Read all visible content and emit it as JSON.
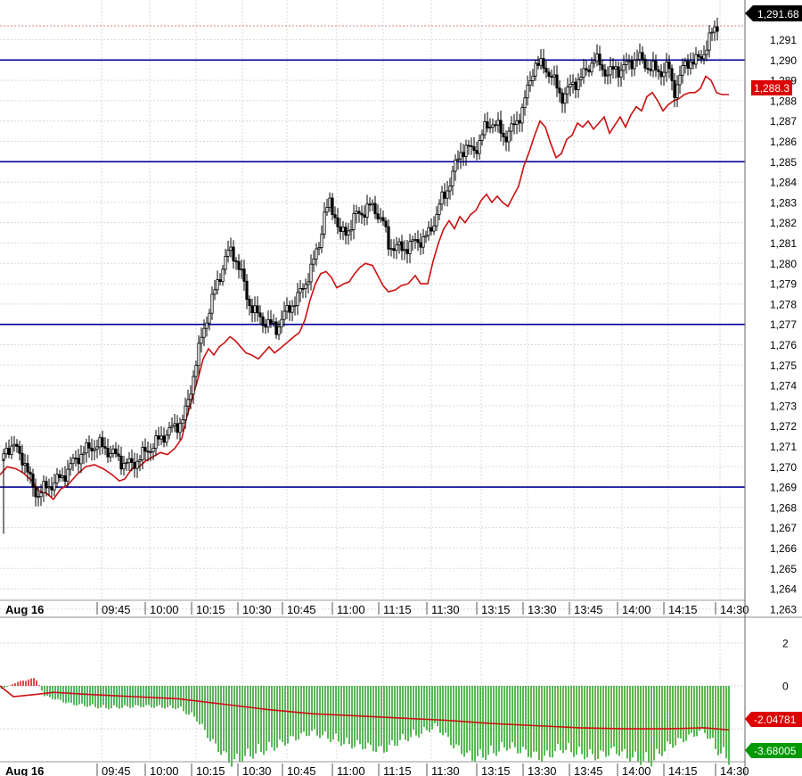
{
  "chart_data": [
    {
      "type": "candlestick",
      "panel": "price",
      "ylim": [
        1262.6,
        1292.6
      ],
      "y_ticks": [
        1263,
        1264,
        1265,
        1266,
        1267,
        1268,
        1269,
        1270,
        1271,
        1272,
        1273,
        1274,
        1275,
        1276,
        1277,
        1278,
        1279,
        1280,
        1281,
        1282,
        1283,
        1284,
        1285,
        1286,
        1287,
        1288,
        1289,
        1290,
        1291
      ],
      "x_ticks": [
        "09:45",
        "10:00",
        "10:15",
        "10:30",
        "10:45",
        "11:00",
        "11:15",
        "11:30",
        "13:15",
        "13:30",
        "13:45",
        "14:00",
        "14:15",
        "14:30"
      ],
      "date_label": "Aug 16",
      "grid": true,
      "horizontal_levels": [
        1290,
        1285,
        1277,
        1269
      ],
      "last_price_label": "1,291.68",
      "secondary_label": "1,288.3",
      "close_path": [
        [
          0,
          1270.3
        ],
        [
          8,
          1271.0
        ],
        [
          18,
          1270.9
        ],
        [
          26,
          1270.4
        ],
        [
          34,
          1269.3
        ],
        [
          42,
          1268.6
        ],
        [
          52,
          1269.0
        ],
        [
          60,
          1269.2
        ],
        [
          70,
          1269.5
        ],
        [
          80,
          1270.1
        ],
        [
          90,
          1270.6
        ],
        [
          100,
          1270.9
        ],
        [
          110,
          1271.1
        ],
        [
          118,
          1270.9
        ],
        [
          128,
          1270.6
        ],
        [
          138,
          1270.2
        ],
        [
          148,
          1270.1
        ],
        [
          158,
          1270.5
        ],
        [
          168,
          1270.9
        ],
        [
          178,
          1271.3
        ],
        [
          188,
          1271.7
        ],
        [
          198,
          1272.0
        ],
        [
          206,
          1272.4
        ],
        [
          212,
          1273.3
        ],
        [
          218,
          1274.8
        ],
        [
          224,
          1275.9
        ],
        [
          230,
          1277.0
        ],
        [
          238,
          1278.2
        ],
        [
          246,
          1279.3
        ],
        [
          254,
          1280.4
        ],
        [
          260,
          1280.6
        ],
        [
          266,
          1280.1
        ],
        [
          272,
          1279.3
        ],
        [
          278,
          1278.2
        ],
        [
          286,
          1277.6
        ],
        [
          294,
          1277.2
        ],
        [
          302,
          1277.0
        ],
        [
          310,
          1276.8
        ],
        [
          318,
          1277.4
        ],
        [
          326,
          1277.9
        ],
        [
          334,
          1278.3
        ],
        [
          342,
          1279.0
        ],
        [
          350,
          1279.8
        ],
        [
          358,
          1281.0
        ],
        [
          364,
          1282.4
        ],
        [
          370,
          1282.9
        ],
        [
          376,
          1282.4
        ],
        [
          382,
          1281.4
        ],
        [
          390,
          1281.6
        ],
        [
          398,
          1282.3
        ],
        [
          406,
          1282.5
        ],
        [
          414,
          1282.8
        ],
        [
          422,
          1282.6
        ],
        [
          430,
          1282.0
        ],
        [
          436,
          1280.9
        ],
        [
          444,
          1280.8
        ],
        [
          452,
          1280.7
        ],
        [
          460,
          1280.9
        ],
        [
          468,
          1281.1
        ],
        [
          476,
          1281.2
        ],
        [
          482,
          1281.5
        ],
        [
          488,
          1282.2
        ],
        [
          494,
          1283.0
        ],
        [
          500,
          1283.4
        ],
        [
          506,
          1284.2
        ],
        [
          512,
          1284.9
        ],
        [
          518,
          1285.6
        ],
        [
          524,
          1285.7
        ],
        [
          530,
          1285.5
        ],
        [
          536,
          1285.8
        ],
        [
          544,
          1286.6
        ],
        [
          552,
          1287.0
        ],
        [
          560,
          1286.6
        ],
        [
          566,
          1286.2
        ],
        [
          572,
          1286.5
        ],
        [
          578,
          1286.8
        ],
        [
          586,
          1287.6
        ],
        [
          594,
          1288.8
        ],
        [
          600,
          1289.9
        ],
        [
          606,
          1289.7
        ],
        [
          612,
          1289.6
        ],
        [
          618,
          1289.3
        ],
        [
          624,
          1288.7
        ],
        [
          630,
          1288.2
        ],
        [
          636,
          1288.4
        ],
        [
          642,
          1288.8
        ],
        [
          648,
          1289.0
        ],
        [
          654,
          1289.2
        ],
        [
          660,
          1289.6
        ],
        [
          666,
          1290.1
        ],
        [
          672,
          1289.8
        ],
        [
          678,
          1289.5
        ],
        [
          684,
          1289.3
        ],
        [
          690,
          1289.6
        ],
        [
          696,
          1289.5
        ],
        [
          702,
          1289.7
        ],
        [
          708,
          1289.9
        ],
        [
          714,
          1290.1
        ],
        [
          720,
          1290.0
        ],
        [
          726,
          1289.7
        ],
        [
          732,
          1289.6
        ],
        [
          738,
          1289.4
        ],
        [
          744,
          1289.5
        ],
        [
          750,
          1289.7
        ],
        [
          756,
          1288.4
        ],
        [
          762,
          1289.1
        ],
        [
          768,
          1289.7
        ],
        [
          774,
          1290.0
        ],
        [
          780,
          1289.9
        ],
        [
          786,
          1290.1
        ],
        [
          792,
          1290.6
        ],
        [
          798,
          1291.2
        ],
        [
          804,
          1291.7
        ]
      ],
      "overlay_line_red": [
        [
          0,
          1269.6
        ],
        [
          8,
          1270.0
        ],
        [
          18,
          1269.9
        ],
        [
          26,
          1269.7
        ],
        [
          36,
          1269.3
        ],
        [
          44,
          1268.8
        ],
        [
          52,
          1268.7
        ],
        [
          60,
          1268.4
        ],
        [
          68,
          1268.9
        ],
        [
          76,
          1269.1
        ],
        [
          86,
          1269.6
        ],
        [
          96,
          1270.0
        ],
        [
          106,
          1270.1
        ],
        [
          116,
          1269.9
        ],
        [
          126,
          1269.6
        ],
        [
          134,
          1269.3
        ],
        [
          140,
          1269.4
        ],
        [
          148,
          1269.9
        ],
        [
          156,
          1270.0
        ],
        [
          164,
          1270.3
        ],
        [
          172,
          1270.5
        ],
        [
          180,
          1270.7
        ],
        [
          188,
          1270.6
        ],
        [
          196,
          1270.9
        ],
        [
          204,
          1271.4
        ],
        [
          210,
          1272.5
        ],
        [
          216,
          1273.4
        ],
        [
          222,
          1274.3
        ],
        [
          228,
          1275.3
        ],
        [
          234,
          1275.8
        ],
        [
          240,
          1275.5
        ],
        [
          246,
          1275.9
        ],
        [
          252,
          1276.1
        ],
        [
          258,
          1276.4
        ],
        [
          264,
          1276.2
        ],
        [
          270,
          1275.9
        ],
        [
          276,
          1275.6
        ],
        [
          282,
          1275.5
        ],
        [
          290,
          1275.3
        ],
        [
          296,
          1275.6
        ],
        [
          302,
          1275.9
        ],
        [
          308,
          1275.6
        ],
        [
          314,
          1275.8
        ],
        [
          322,
          1276.1
        ],
        [
          330,
          1276.4
        ],
        [
          336,
          1276.6
        ],
        [
          342,
          1277.2
        ],
        [
          348,
          1278.2
        ],
        [
          354,
          1279.0
        ],
        [
          360,
          1279.5
        ],
        [
          366,
          1279.6
        ],
        [
          372,
          1279.3
        ],
        [
          378,
          1278.8
        ],
        [
          386,
          1279.0
        ],
        [
          392,
          1279.1
        ],
        [
          398,
          1279.5
        ],
        [
          404,
          1279.8
        ],
        [
          410,
          1280.0
        ],
        [
          418,
          1279.9
        ],
        [
          424,
          1279.4
        ],
        [
          430,
          1278.9
        ],
        [
          436,
          1278.6
        ],
        [
          444,
          1278.7
        ],
        [
          450,
          1278.9
        ],
        [
          458,
          1279.0
        ],
        [
          466,
          1279.4
        ],
        [
          472,
          1279.0
        ],
        [
          480,
          1279.0
        ],
        [
          486,
          1280.1
        ],
        [
          492,
          1281.0
        ],
        [
          498,
          1281.7
        ],
        [
          504,
          1282.1
        ],
        [
          510,
          1281.7
        ],
        [
          516,
          1282.3
        ],
        [
          522,
          1282.0
        ],
        [
          528,
          1282.4
        ],
        [
          534,
          1282.6
        ],
        [
          540,
          1283.1
        ],
        [
          546,
          1283.4
        ],
        [
          552,
          1283.0
        ],
        [
          558,
          1283.3
        ],
        [
          564,
          1283.0
        ],
        [
          570,
          1282.8
        ],
        [
          576,
          1283.3
        ],
        [
          582,
          1283.8
        ],
        [
          588,
          1284.8
        ],
        [
          594,
          1285.5
        ],
        [
          600,
          1286.3
        ],
        [
          606,
          1287.0
        ],
        [
          612,
          1286.7
        ],
        [
          618,
          1285.9
        ],
        [
          624,
          1285.2
        ],
        [
          630,
          1285.4
        ],
        [
          636,
          1286.1
        ],
        [
          642,
          1286.3
        ],
        [
          648,
          1286.9
        ],
        [
          654,
          1286.7
        ],
        [
          660,
          1287.0
        ],
        [
          666,
          1286.6
        ],
        [
          672,
          1286.9
        ],
        [
          678,
          1287.2
        ],
        [
          684,
          1286.4
        ],
        [
          690,
          1286.8
        ],
        [
          696,
          1287.2
        ],
        [
          702,
          1286.7
        ],
        [
          708,
          1287.3
        ],
        [
          714,
          1287.7
        ],
        [
          720,
          1287.5
        ],
        [
          726,
          1288.2
        ],
        [
          732,
          1288.4
        ],
        [
          738,
          1288.0
        ],
        [
          744,
          1287.5
        ],
        [
          750,
          1287.8
        ],
        [
          756,
          1288.0
        ],
        [
          762,
          1288.1
        ],
        [
          768,
          1288.3
        ],
        [
          774,
          1288.4
        ],
        [
          780,
          1288.4
        ],
        [
          786,
          1288.6
        ],
        [
          792,
          1289.2
        ],
        [
          798,
          1289.0
        ],
        [
          804,
          1288.4
        ],
        [
          810,
          1288.3
        ],
        [
          818,
          1288.3
        ]
      ]
    },
    {
      "type": "bar",
      "panel": "oscillator",
      "ylim": [
        -4.2,
        3.2
      ],
      "y_ticks": [
        2,
        0
      ],
      "x_ticks": [
        "09:45",
        "10:00",
        "10:15",
        "10:30",
        "10:45",
        "11:00",
        "11:15",
        "11:30",
        "13:15",
        "13:30",
        "13:45",
        "14:00",
        "14:15",
        "14:30"
      ],
      "date_label": "Aug 16",
      "bar_label": "-3.68005",
      "line_label": "-2.04781",
      "histogram_envelope": [
        [
          0,
          -0.2
        ],
        [
          20,
          0.2
        ],
        [
          40,
          0.4
        ],
        [
          50,
          -0.5
        ],
        [
          80,
          -0.9
        ],
        [
          120,
          -1.1
        ],
        [
          160,
          -1.0
        ],
        [
          200,
          -1.1
        ],
        [
          220,
          -1.6
        ],
        [
          240,
          -2.9
        ],
        [
          260,
          -3.8
        ],
        [
          270,
          -3.6
        ],
        [
          290,
          -3.3
        ],
        [
          310,
          -3.0
        ],
        [
          330,
          -2.6
        ],
        [
          350,
          -2.3
        ],
        [
          370,
          -2.6
        ],
        [
          390,
          -2.9
        ],
        [
          410,
          -3.0
        ],
        [
          430,
          -3.2
        ],
        [
          450,
          -2.7
        ],
        [
          470,
          -2.4
        ],
        [
          490,
          -2.0
        ],
        [
          510,
          -3.0
        ],
        [
          530,
          -3.6
        ],
        [
          550,
          -3.4
        ],
        [
          570,
          -3.0
        ],
        [
          590,
          -3.3
        ],
        [
          610,
          -3.6
        ],
        [
          630,
          -3.1
        ],
        [
          650,
          -3.4
        ],
        [
          670,
          -3.5
        ],
        [
          690,
          -3.2
        ],
        [
          710,
          -3.6
        ],
        [
          730,
          -3.8
        ],
        [
          750,
          -3.0
        ],
        [
          770,
          -2.6
        ],
        [
          790,
          -2.2
        ],
        [
          805,
          -3.2
        ],
        [
          818,
          -3.68
        ]
      ],
      "signal_line_red": [
        [
          0,
          0.0
        ],
        [
          15,
          -0.5
        ],
        [
          40,
          -0.4
        ],
        [
          60,
          -0.3
        ],
        [
          100,
          -0.4
        ],
        [
          150,
          -0.5
        ],
        [
          200,
          -0.6
        ],
        [
          240,
          -0.8
        ],
        [
          300,
          -1.1
        ],
        [
          350,
          -1.3
        ],
        [
          400,
          -1.4
        ],
        [
          450,
          -1.5
        ],
        [
          500,
          -1.6
        ],
        [
          550,
          -1.75
        ],
        [
          600,
          -1.85
        ],
        [
          650,
          -1.95
        ],
        [
          700,
          -2.0
        ],
        [
          750,
          -2.0
        ],
        [
          790,
          -1.95
        ],
        [
          818,
          -2.05
        ]
      ]
    }
  ]
}
